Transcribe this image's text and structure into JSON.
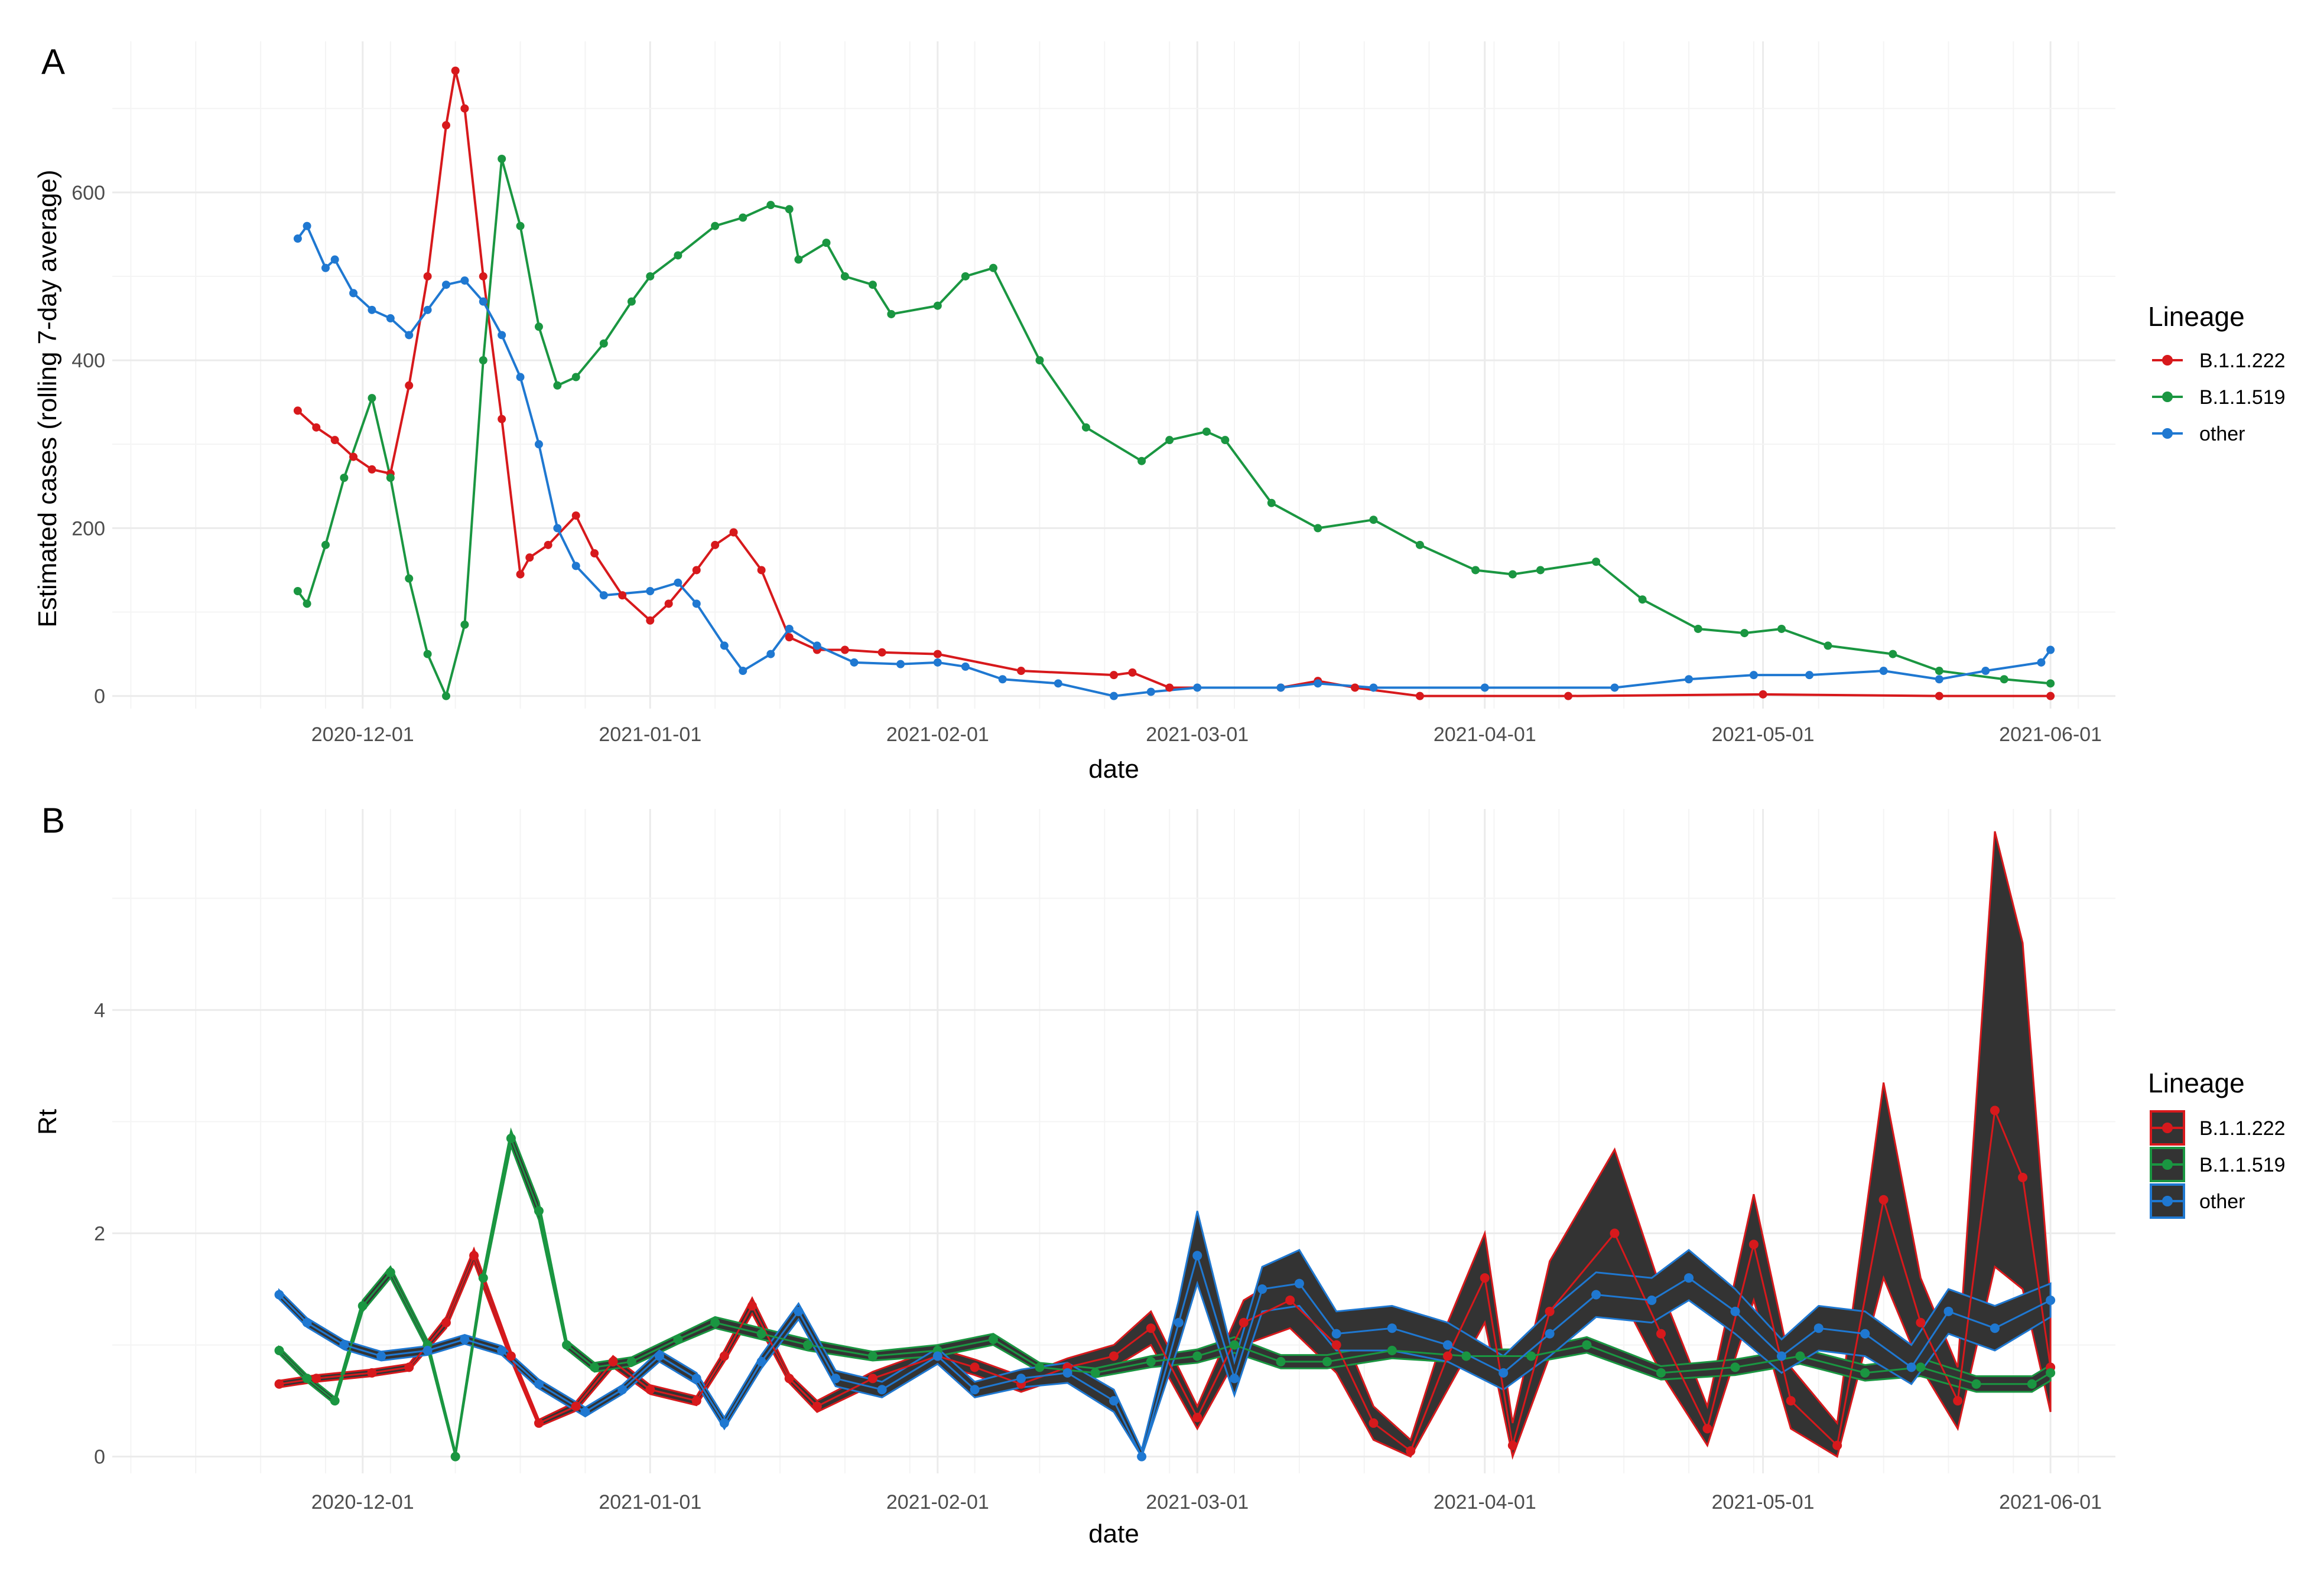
{
  "chart_data": [
    {
      "panel": "A",
      "type": "line",
      "xlabel": "date",
      "ylabel": "Estimated cases (rolling 7-day average)",
      "x_range": [
        "2020-11-04",
        "2021-06-08"
      ],
      "ylim": [
        -15,
        780
      ],
      "x_ticks": [
        "2020-12-01",
        "2021-01-01",
        "2021-02-01",
        "2021-03-01",
        "2021-04-01",
        "2021-05-01",
        "2021-06-01"
      ],
      "y_ticks": [
        0,
        200,
        400,
        600
      ],
      "grid": true,
      "markers": "points",
      "legend": {
        "title": "Lineage",
        "position": "right"
      },
      "series": [
        {
          "name": "B.1.1.222",
          "color": "#d7191c",
          "x": [
            "2020-11-24",
            "2020-11-26",
            "2020-11-28",
            "2020-11-30",
            "2020-12-02",
            "2020-12-04",
            "2020-12-06",
            "2020-12-08",
            "2020-12-10",
            "2020-12-11",
            "2020-12-12",
            "2020-12-14",
            "2020-12-16",
            "2020-12-18",
            "2020-12-19",
            "2020-12-21",
            "2020-12-24",
            "2020-12-26",
            "2020-12-29",
            "2021-01-01",
            "2021-01-03",
            "2021-01-06",
            "2021-01-08",
            "2021-01-10",
            "2021-01-13",
            "2021-01-16",
            "2021-01-19",
            "2021-01-22",
            "2021-01-26",
            "2021-02-01",
            "2021-02-10",
            "2021-02-20",
            "2021-02-22",
            "2021-02-26",
            "2021-03-10",
            "2021-03-14",
            "2021-03-18",
            "2021-03-25",
            "2021-04-10",
            "2021-05-01",
            "2021-05-20",
            "2021-06-01"
          ],
          "y": [
            340,
            320,
            305,
            285,
            270,
            265,
            370,
            500,
            680,
            745,
            700,
            500,
            330,
            145,
            165,
            180,
            215,
            170,
            120,
            90,
            110,
            150,
            180,
            195,
            150,
            70,
            55,
            55,
            52,
            50,
            30,
            25,
            28,
            10,
            10,
            18,
            10,
            0,
            0,
            2,
            0,
            0
          ]
        },
        {
          "name": "B.1.1.519",
          "color": "#1a9641",
          "x": [
            "2020-11-24",
            "2020-11-25",
            "2020-11-27",
            "2020-11-29",
            "2020-12-02",
            "2020-12-04",
            "2020-12-06",
            "2020-12-08",
            "2020-12-10",
            "2020-12-12",
            "2020-12-14",
            "2020-12-16",
            "2020-12-18",
            "2020-12-20",
            "2020-12-22",
            "2020-12-24",
            "2020-12-27",
            "2020-12-30",
            "2021-01-01",
            "2021-01-04",
            "2021-01-08",
            "2021-01-11",
            "2021-01-14",
            "2021-01-16",
            "2021-01-17",
            "2021-01-20",
            "2021-01-22",
            "2021-01-25",
            "2021-01-27",
            "2021-02-01",
            "2021-02-04",
            "2021-02-07",
            "2021-02-12",
            "2021-02-17",
            "2021-02-23",
            "2021-02-26",
            "2021-03-02",
            "2021-03-04",
            "2021-03-09",
            "2021-03-14",
            "2021-03-20",
            "2021-03-25",
            "2021-03-31",
            "2021-04-04",
            "2021-04-07",
            "2021-04-13",
            "2021-04-18",
            "2021-04-24",
            "2021-04-29",
            "2021-05-03",
            "2021-05-08",
            "2021-05-15",
            "2021-05-20",
            "2021-05-27",
            "2021-06-01"
          ],
          "y": [
            125,
            110,
            180,
            260,
            355,
            260,
            140,
            50,
            0,
            85,
            400,
            640,
            560,
            440,
            370,
            380,
            420,
            470,
            500,
            525,
            560,
            570,
            585,
            580,
            520,
            540,
            500,
            490,
            455,
            465,
            500,
            510,
            400,
            320,
            280,
            305,
            315,
            305,
            230,
            200,
            210,
            180,
            150,
            145,
            150,
            160,
            115,
            80,
            75,
            80,
            60,
            50,
            30,
            20,
            15
          ]
        },
        {
          "name": "other",
          "color": "#1f78d1",
          "x": [
            "2020-11-24",
            "2020-11-25",
            "2020-11-27",
            "2020-11-28",
            "2020-11-30",
            "2020-12-02",
            "2020-12-04",
            "2020-12-06",
            "2020-12-08",
            "2020-12-10",
            "2020-12-12",
            "2020-12-14",
            "2020-12-16",
            "2020-12-18",
            "2020-12-20",
            "2020-12-22",
            "2020-12-24",
            "2020-12-27",
            "2021-01-01",
            "2021-01-04",
            "2021-01-06",
            "2021-01-09",
            "2021-01-11",
            "2021-01-14",
            "2021-01-16",
            "2021-01-19",
            "2021-01-23",
            "2021-01-28",
            "2021-02-01",
            "2021-02-04",
            "2021-02-08",
            "2021-02-14",
            "2021-02-20",
            "2021-02-24",
            "2021-03-01",
            "2021-03-10",
            "2021-03-14",
            "2021-03-20",
            "2021-04-01",
            "2021-04-15",
            "2021-04-23",
            "2021-04-30",
            "2021-05-06",
            "2021-05-14",
            "2021-05-20",
            "2021-05-25",
            "2021-05-31",
            "2021-06-01"
          ],
          "y": [
            545,
            560,
            510,
            520,
            480,
            460,
            450,
            430,
            460,
            490,
            495,
            470,
            430,
            380,
            300,
            200,
            155,
            120,
            125,
            135,
            110,
            60,
            30,
            50,
            80,
            60,
            40,
            38,
            40,
            35,
            20,
            15,
            0,
            5,
            10,
            10,
            15,
            10,
            10,
            10,
            20,
            25,
            25,
            30,
            20,
            30,
            40,
            55
          ]
        }
      ]
    },
    {
      "panel": "B",
      "type": "line",
      "xlabel": "date",
      "ylabel": "Rt",
      "x_range": [
        "2020-11-04",
        "2021-06-08"
      ],
      "ylim": [
        -0.15,
        5.8
      ],
      "x_ticks": [
        "2020-12-01",
        "2021-01-01",
        "2021-02-01",
        "2021-03-01",
        "2021-04-01",
        "2021-05-01",
        "2021-06-01"
      ],
      "y_ticks": [
        0,
        2,
        4
      ],
      "grid": true,
      "markers": "points with credible-interval band",
      "legend": {
        "title": "Lineage",
        "position": "right"
      },
      "band_fill": "#333333",
      "series": [
        {
          "name": "B.1.1.222",
          "color": "#d7191c",
          "x": [
            "2020-11-22",
            "2020-11-26",
            "2020-12-02",
            "2020-12-06",
            "2020-12-10",
            "2020-12-13",
            "2020-12-17",
            "2020-12-20",
            "2020-12-24",
            "2020-12-28",
            "2021-01-01",
            "2021-01-06",
            "2021-01-09",
            "2021-01-12",
            "2021-01-16",
            "2021-01-19",
            "2021-01-25",
            "2021-02-01",
            "2021-02-05",
            "2021-02-10",
            "2021-02-15",
            "2021-02-20",
            "2021-02-24",
            "2021-03-01",
            "2021-03-06",
            "2021-03-11",
            "2021-03-16",
            "2021-03-20",
            "2021-03-24",
            "2021-03-28",
            "2021-04-01",
            "2021-04-04",
            "2021-04-08",
            "2021-04-15",
            "2021-04-20",
            "2021-04-25",
            "2021-04-30",
            "2021-05-04",
            "2021-05-09",
            "2021-05-14",
            "2021-05-18",
            "2021-05-22",
            "2021-05-26",
            "2021-05-29",
            "2021-06-01"
          ],
          "y": [
            0.65,
            0.7,
            0.75,
            0.8,
            1.2,
            1.8,
            0.9,
            0.3,
            0.45,
            0.85,
            0.6,
            0.5,
            0.9,
            1.35,
            0.7,
            0.45,
            0.7,
            0.9,
            0.8,
            0.65,
            0.8,
            0.9,
            1.15,
            0.35,
            1.2,
            1.4,
            1.0,
            0.3,
            0.05,
            0.9,
            1.6,
            0.1,
            1.3,
            2.0,
            1.1,
            0.25,
            1.9,
            0.5,
            0.1,
            2.3,
            1.2,
            0.5,
            3.1,
            2.5,
            0.8
          ],
          "lower": [
            0.62,
            0.67,
            0.72,
            0.77,
            1.15,
            1.74,
            0.86,
            0.27,
            0.41,
            0.8,
            0.56,
            0.46,
            0.85,
            1.28,
            0.66,
            0.4,
            0.64,
            0.83,
            0.73,
            0.58,
            0.72,
            0.8,
            1.0,
            0.25,
            1.0,
            1.15,
            0.75,
            0.15,
            0.0,
            0.6,
            1.2,
            0.0,
            0.9,
            1.55,
            0.75,
            0.1,
            1.4,
            0.25,
            0.0,
            1.6,
            0.8,
            0.25,
            1.7,
            1.5,
            0.4
          ],
          "upper": [
            0.68,
            0.73,
            0.78,
            0.83,
            1.25,
            1.86,
            0.94,
            0.33,
            0.49,
            0.9,
            0.64,
            0.54,
            0.95,
            1.42,
            0.74,
            0.5,
            0.76,
            0.97,
            0.87,
            0.72,
            0.88,
            1.0,
            1.3,
            0.45,
            1.4,
            1.65,
            1.25,
            0.45,
            0.15,
            1.2,
            2.0,
            0.3,
            1.75,
            2.75,
            1.5,
            0.45,
            2.35,
            0.8,
            0.3,
            3.35,
            1.6,
            0.8,
            5.6,
            4.6,
            1.4
          ]
        },
        {
          "name": "B.1.1.519",
          "color": "#1a9641",
          "x": [
            "2020-11-22",
            "2020-11-25",
            "2020-11-28",
            "2020-12-01",
            "2020-12-04",
            "2020-12-08",
            "2020-12-11",
            "2020-12-14",
            "2020-12-17",
            "2020-12-20",
            "2020-12-23",
            "2020-12-26",
            "2020-12-30",
            "2021-01-04",
            "2021-01-08",
            "2021-01-13",
            "2021-01-18",
            "2021-01-25",
            "2021-02-01",
            "2021-02-07",
            "2021-02-12",
            "2021-02-18",
            "2021-02-24",
            "2021-03-01",
            "2021-03-05",
            "2021-03-10",
            "2021-03-15",
            "2021-03-22",
            "2021-03-30",
            "2021-04-06",
            "2021-04-12",
            "2021-04-20",
            "2021-04-28",
            "2021-05-05",
            "2021-05-12",
            "2021-05-18",
            "2021-05-24",
            "2021-05-30",
            "2021-06-01"
          ],
          "y": [
            0.95,
            0.7,
            0.5,
            1.35,
            1.65,
            1.0,
            0.0,
            1.6,
            2.85,
            2.2,
            1.0,
            0.8,
            0.85,
            1.05,
            1.2,
            1.1,
            1.0,
            0.9,
            0.95,
            1.05,
            0.8,
            0.75,
            0.85,
            0.9,
            1.0,
            0.85,
            0.85,
            0.95,
            0.9,
            0.9,
            1.0,
            0.75,
            0.8,
            0.9,
            0.75,
            0.8,
            0.65,
            0.65,
            0.75
          ],
          "lower": [
            0.92,
            0.67,
            0.47,
            1.3,
            1.6,
            0.96,
            0.0,
            1.55,
            2.78,
            2.12,
            0.96,
            0.76,
            0.81,
            1.01,
            1.15,
            1.05,
            0.95,
            0.86,
            0.9,
            1.0,
            0.76,
            0.71,
            0.8,
            0.84,
            0.93,
            0.79,
            0.79,
            0.88,
            0.84,
            0.84,
            0.93,
            0.69,
            0.73,
            0.83,
            0.68,
            0.72,
            0.58,
            0.58,
            0.68
          ],
          "upper": [
            0.98,
            0.73,
            0.53,
            1.4,
            1.7,
            1.04,
            0.04,
            1.65,
            2.92,
            2.28,
            1.04,
            0.84,
            0.89,
            1.09,
            1.25,
            1.15,
            1.05,
            0.94,
            1.0,
            1.1,
            0.84,
            0.79,
            0.9,
            0.96,
            1.07,
            0.91,
            0.91,
            1.02,
            0.96,
            0.96,
            1.07,
            0.81,
            0.87,
            0.97,
            0.82,
            0.88,
            0.72,
            0.72,
            0.82
          ]
        },
        {
          "name": "other",
          "color": "#1f78d1",
          "x": [
            "2020-11-22",
            "2020-11-25",
            "2020-11-29",
            "2020-12-03",
            "2020-12-08",
            "2020-12-12",
            "2020-12-16",
            "2020-12-20",
            "2020-12-25",
            "2020-12-29",
            "2021-01-02",
            "2021-01-06",
            "2021-01-09",
            "2021-01-13",
            "2021-01-17",
            "2021-01-21",
            "2021-01-26",
            "2021-02-01",
            "2021-02-05",
            "2021-02-10",
            "2021-02-15",
            "2021-02-20",
            "2021-02-23",
            "2021-02-27",
            "2021-03-01",
            "2021-03-05",
            "2021-03-08",
            "2021-03-12",
            "2021-03-16",
            "2021-03-22",
            "2021-03-28",
            "2021-04-03",
            "2021-04-08",
            "2021-04-13",
            "2021-04-19",
            "2021-04-23",
            "2021-04-28",
            "2021-05-03",
            "2021-05-07",
            "2021-05-12",
            "2021-05-17",
            "2021-05-21",
            "2021-05-26",
            "2021-06-01"
          ],
          "y": [
            1.45,
            1.2,
            1.0,
            0.9,
            0.95,
            1.05,
            0.95,
            0.65,
            0.4,
            0.6,
            0.9,
            0.7,
            0.3,
            0.85,
            1.3,
            0.7,
            0.6,
            0.9,
            0.6,
            0.7,
            0.75,
            0.5,
            0.0,
            1.2,
            1.8,
            0.7,
            1.5,
            1.55,
            1.1,
            1.15,
            1.0,
            0.75,
            1.1,
            1.45,
            1.4,
            1.6,
            1.3,
            0.9,
            1.15,
            1.1,
            0.8,
            1.3,
            1.15,
            1.4
          ],
          "lower": [
            1.41,
            1.16,
            0.96,
            0.86,
            0.91,
            1.01,
            0.91,
            0.61,
            0.36,
            0.56,
            0.85,
            0.65,
            0.25,
            0.79,
            1.23,
            0.63,
            0.53,
            0.83,
            0.53,
            0.62,
            0.66,
            0.4,
            0.0,
            1.0,
            1.55,
            0.55,
            1.3,
            1.35,
            0.95,
            0.95,
            0.85,
            0.6,
            0.9,
            1.25,
            1.2,
            1.4,
            1.1,
            0.75,
            0.95,
            0.9,
            0.65,
            1.1,
            0.95,
            1.25
          ],
          "upper": [
            1.49,
            1.24,
            1.04,
            0.94,
            0.99,
            1.09,
            0.99,
            0.69,
            0.44,
            0.64,
            0.95,
            0.75,
            0.35,
            0.91,
            1.37,
            0.77,
            0.67,
            0.97,
            0.67,
            0.78,
            0.84,
            0.6,
            0.06,
            1.4,
            2.2,
            0.85,
            1.7,
            1.85,
            1.3,
            1.35,
            1.2,
            0.9,
            1.3,
            1.65,
            1.6,
            1.85,
            1.5,
            1.05,
            1.35,
            1.3,
            1.0,
            1.5,
            1.35,
            1.55
          ]
        }
      ]
    }
  ]
}
